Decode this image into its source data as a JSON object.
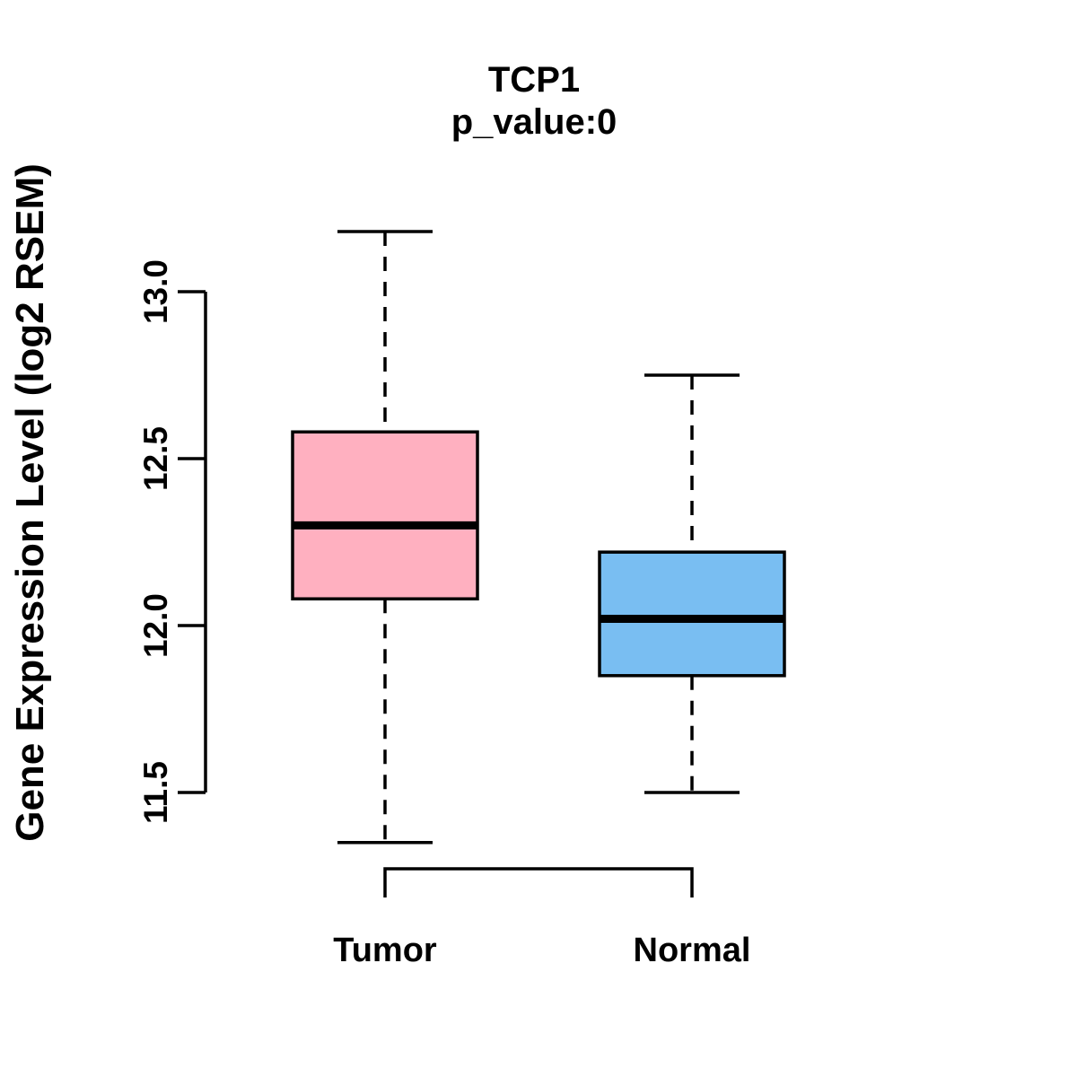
{
  "figure": {
    "background_color": "#ffffff",
    "line_color": "#000000"
  },
  "chart_data": {
    "type": "boxplot",
    "title": "TCP1",
    "subtitle": "p_value:0",
    "ylabel": "Gene Expression Level (log2 RSEM)",
    "xlabel": "",
    "categories": [
      "Tumor",
      "Normal"
    ],
    "y_tick_labels": [
      "11.5",
      "12.0",
      "12.5",
      "13.0"
    ],
    "y_axis_range": [
      11.5,
      13.0
    ],
    "grid": "off",
    "legend": "none",
    "series": [
      {
        "name": "Tumor",
        "color": "#FFB0C0",
        "whisker_low": 11.35,
        "q1": 12.08,
        "median": 12.3,
        "q3": 12.58,
        "whisker_high": 13.18
      },
      {
        "name": "Normal",
        "color": "#79BEF2",
        "whisker_low": 11.5,
        "q1": 11.85,
        "median": 12.02,
        "q3": 12.22,
        "whisker_high": 12.75
      }
    ]
  }
}
